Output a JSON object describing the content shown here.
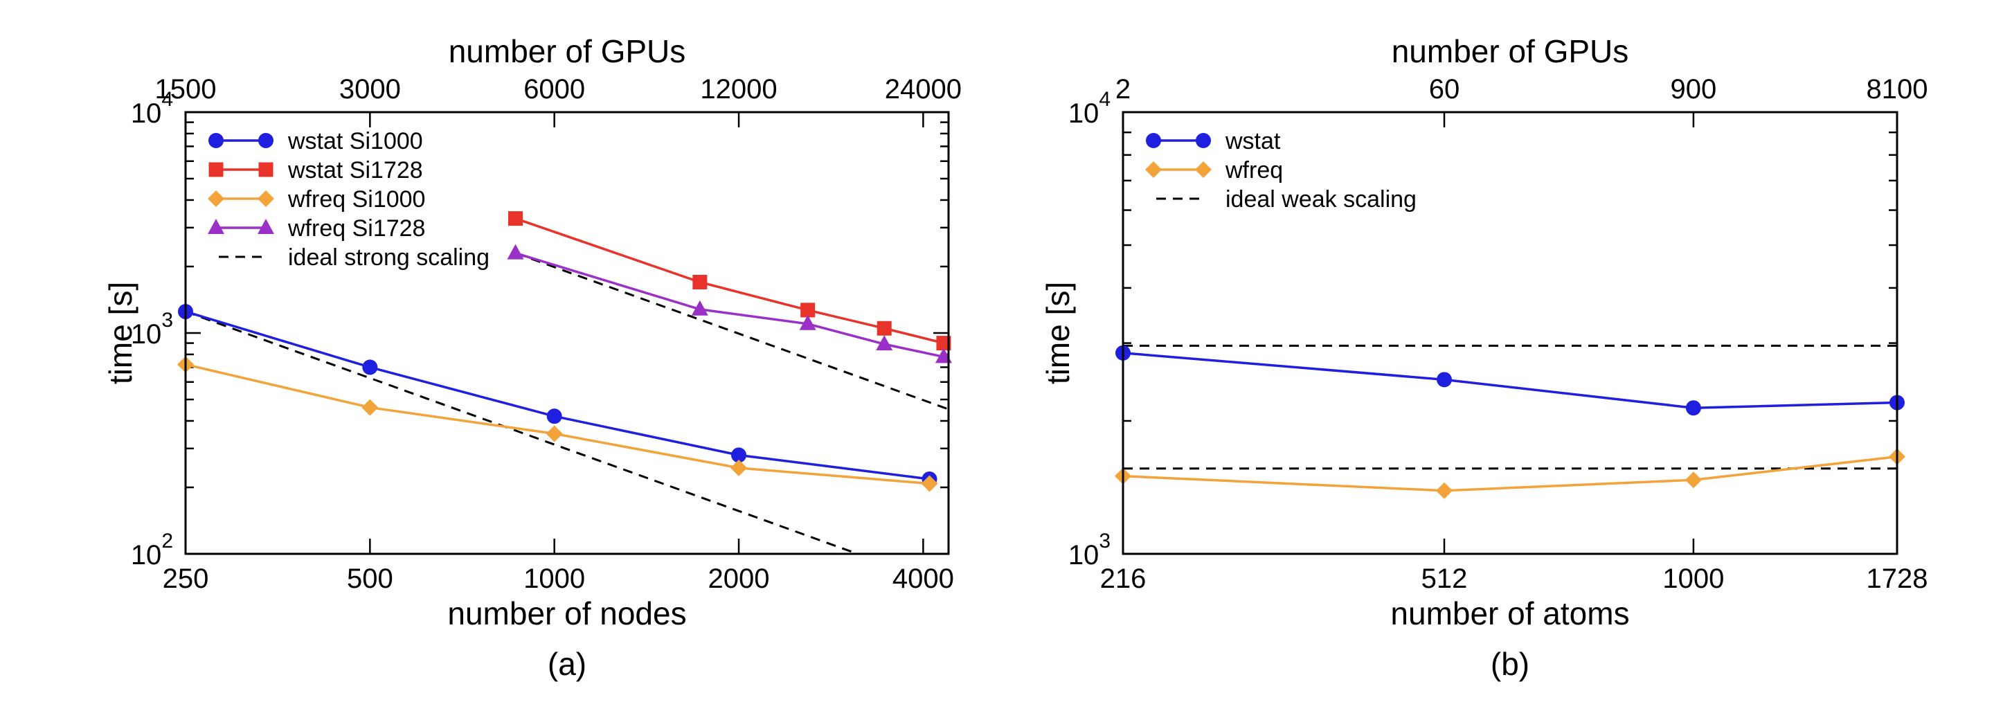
{
  "chart_data": [
    {
      "type": "line",
      "panel_label": "(a)",
      "xscale": "log",
      "yscale": "log",
      "xlabel": "number of nodes",
      "x2label": "number of GPUs",
      "ylabel": "time [s]",
      "xlim": [
        250,
        4400
      ],
      "ylim": [
        100,
        10000
      ],
      "xticks": [
        250,
        500,
        1000,
        2000,
        4000
      ],
      "xtick_labels": [
        "250",
        "500",
        "1000",
        "2000",
        "4000"
      ],
      "x2ticks": [
        250,
        500,
        1000,
        2000,
        4000
      ],
      "x2tick_labels": [
        "1500",
        "3000",
        "6000",
        "12000",
        "24000"
      ],
      "yticks": [
        {
          "value": 100,
          "base": "10",
          "exp": "2"
        },
        {
          "value": 1000,
          "base": "10",
          "exp": "3"
        },
        {
          "value": 10000,
          "base": "10",
          "exp": "4"
        }
      ],
      "legend_position": "top-left",
      "series": [
        {
          "name": "wstat Si1000",
          "color": "#1f1fe0",
          "marker": "circle",
          "x": [
            250,
            500,
            1000,
            2000,
            4096
          ],
          "y": [
            1250,
            700,
            420,
            280,
            218
          ]
        },
        {
          "name": "wstat Si1728",
          "color": "#e8332a",
          "marker": "square",
          "x": [
            864,
            1728,
            2592,
            3456,
            4320
          ],
          "y": [
            3300,
            1700,
            1270,
            1050,
            900
          ]
        },
        {
          "name": "wfreq Si1000",
          "color": "#f2a33a",
          "marker": "diamond",
          "x": [
            250,
            500,
            1000,
            2000,
            4096
          ],
          "y": [
            720,
            460,
            350,
            245,
            208
          ]
        },
        {
          "name": "wfreq Si1728",
          "color": "#9b30c8",
          "marker": "triangle",
          "x": [
            864,
            1728,
            2592,
            3456,
            4320
          ],
          "y": [
            2300,
            1280,
            1100,
            890,
            780
          ]
        }
      ],
      "reference_lines": [
        {
          "name": "ideal strong scaling",
          "style": "dashed",
          "color": "#000000",
          "x": [
            250,
            3200
          ],
          "y": [
            1250,
            97.7
          ]
        },
        {
          "name": "",
          "style": "dashed",
          "color": "#000000",
          "x": [
            864,
            4400
          ],
          "y": [
            2300,
            451.6
          ]
        }
      ]
    },
    {
      "type": "line",
      "panel_label": "(b)",
      "xscale": "log",
      "yscale": "log",
      "xlabel": "number of atoms",
      "x2label": "number of GPUs",
      "ylabel": "time [s]",
      "xlim": [
        216,
        1728
      ],
      "ylim": [
        1000,
        10000
      ],
      "xticks": [
        216,
        512,
        1000,
        1728
      ],
      "xtick_labels": [
        "216",
        "512",
        "1000",
        "1728"
      ],
      "x2ticks": [
        216,
        512,
        1000,
        1728
      ],
      "x2tick_labels": [
        "2",
        "60",
        "900",
        "8100"
      ],
      "yticks": [
        {
          "value": 1000,
          "base": "10",
          "exp": "3"
        },
        {
          "value": 10000,
          "base": "10",
          "exp": "4"
        }
      ],
      "legend_position": "top-left",
      "series": [
        {
          "name": "wstat",
          "color": "#1f1fe0",
          "marker": "circle",
          "x": [
            216,
            512,
            1000,
            1728
          ],
          "y": [
            2850,
            2480,
            2140,
            2200
          ]
        },
        {
          "name": "wfreq",
          "color": "#f2a33a",
          "marker": "diamond",
          "x": [
            216,
            512,
            1000,
            1728
          ],
          "y": [
            1500,
            1390,
            1470,
            1660
          ]
        }
      ],
      "reference_lines": [
        {
          "name": "ideal weak scaling",
          "style": "dashed",
          "color": "#000000",
          "x": [
            216,
            1728
          ],
          "y": [
            2960,
            2960
          ]
        },
        {
          "name": "",
          "style": "dashed",
          "color": "#000000",
          "x": [
            216,
            1728
          ],
          "y": [
            1560,
            1560
          ]
        }
      ]
    }
  ]
}
